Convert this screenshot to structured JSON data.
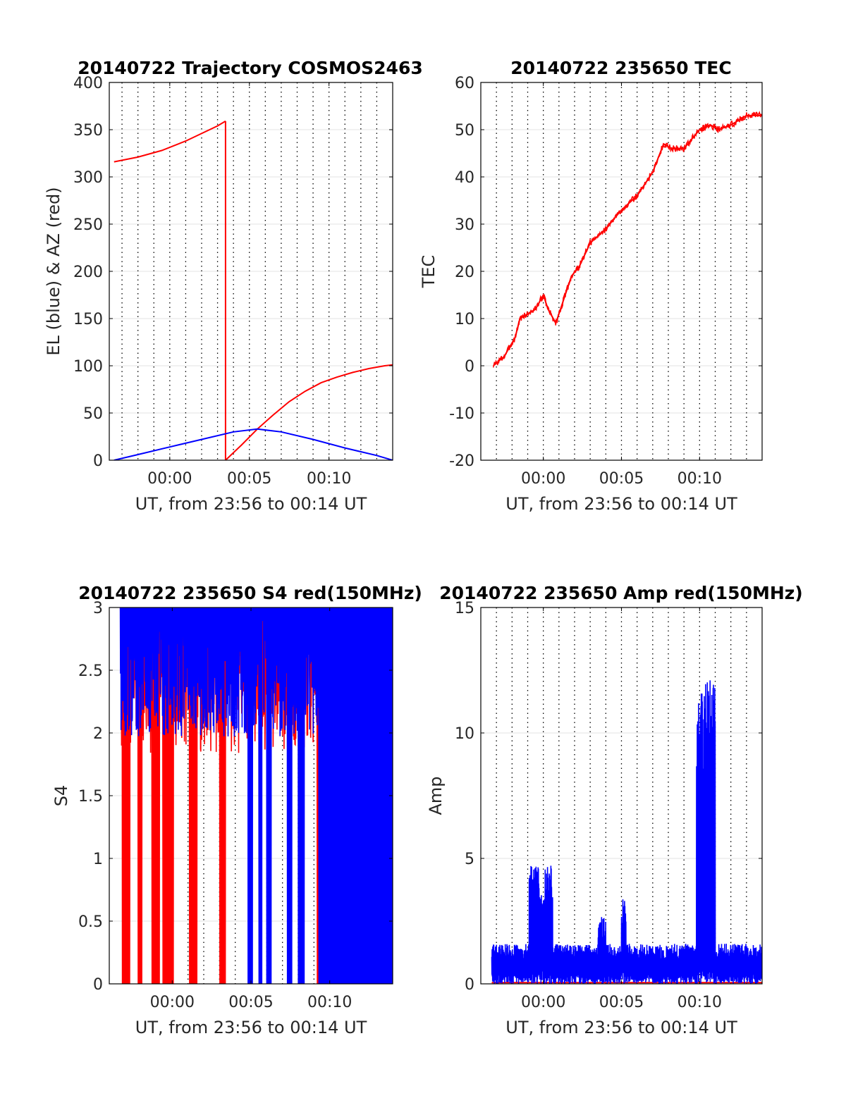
{
  "chart_data": [
    {
      "type": "line",
      "title": "20140722 Trajectory COSMOS2463",
      "xlabel": "UT, from 23:56 to 00:14 UT",
      "ylabel": "EL (blue) & AZ (red)",
      "xlim": [
        -3.8,
        14
      ],
      "ylim": [
        0,
        400
      ],
      "xticks": [
        0,
        5,
        10
      ],
      "xtick_labels": [
        "00:00",
        "00:05",
        "00:10"
      ],
      "yticks": [
        0,
        50,
        100,
        150,
        200,
        250,
        300,
        350,
        400
      ],
      "ytick_labels": [
        "0",
        "50",
        "100",
        "150",
        "200",
        "250",
        "300",
        "350",
        "400"
      ],
      "grid": true,
      "series": [
        {
          "color": "#ff0000",
          "segments": [
            {
              "x": [
                -3.5,
                -2,
                -0.5,
                1,
                2,
                3,
                3.5
              ],
              "y": [
                316,
                321,
                328,
                338,
                346,
                354,
                359
              ]
            },
            {
              "x": [
                3.5,
                3.5
              ],
              "y": [
                359,
                0
              ]
            },
            {
              "x": [
                3.5,
                4.5,
                5.5,
                6.5,
                7.5,
                8.5,
                9.5,
                10.5,
                11.5,
                12.5,
                13.5,
                14
              ],
              "y": [
                0,
                16,
                33,
                48,
                62,
                73,
                82,
                88,
                93,
                97,
                100,
                101
              ]
            }
          ]
        },
        {
          "color": "#0000ff",
          "segments": [
            {
              "x": [
                -3.5,
                -2,
                0,
                2,
                4,
                5.5,
                7,
                9,
                11,
                13,
                14
              ],
              "y": [
                0,
                6,
                14,
                22,
                30,
                33,
                30,
                22,
                13,
                5,
                0
              ]
            }
          ]
        }
      ]
    },
    {
      "type": "line",
      "title": "20140722 235650 TEC",
      "xlabel": "UT, from 23:56 to 00:14 UT",
      "ylabel": "TEC",
      "xlim": [
        -4,
        14
      ],
      "ylim": [
        -20,
        60
      ],
      "xticks": [
        0,
        5,
        10
      ],
      "xtick_labels": [
        "00:00",
        "00:05",
        "00:10"
      ],
      "yticks": [
        -20,
        -10,
        0,
        10,
        20,
        30,
        40,
        50,
        60
      ],
      "ytick_labels": [
        "-20",
        "-10",
        "0",
        "10",
        "20",
        "30",
        "40",
        "50",
        "60"
      ],
      "grid": true,
      "series": [
        {
          "color": "#ff0000",
          "segments": [
            {
              "x": [
                -3.2,
                -2.5,
                -1.8,
                -1.5,
                -0.5,
                0,
                0.3,
                0.8,
                1.3,
                1.8,
                2.3,
                3,
                4,
                5,
                6,
                7,
                7.7,
                8.2,
                9,
                10,
                10.7,
                11.2,
                12,
                13,
                14
              ],
              "y": [
                0,
                2,
                6,
                10,
                12,
                15,
                12,
                9,
                14,
                19,
                21,
                26,
                29,
                33,
                36,
                41,
                47,
                46,
                46,
                50,
                51,
                50,
                51,
                53,
                53
              ]
            }
          ]
        }
      ]
    },
    {
      "type": "line",
      "title": "20140722 235650 S4 red(150MHz)",
      "xlabel": "UT, from 23:56 to 00:14 UT",
      "ylabel": "S4",
      "xlim": [
        -4,
        14
      ],
      "ylim": [
        0,
        3
      ],
      "xticks": [
        0,
        5,
        10
      ],
      "xtick_labels": [
        "00:00",
        "00:05",
        "00:10"
      ],
      "yticks": [
        0,
        0.5,
        1,
        1.5,
        2,
        2.5,
        3
      ],
      "ytick_labels": [
        "0",
        "0.5",
        "1",
        "1.5",
        "2",
        "2.5",
        "3"
      ],
      "grid": true,
      "series": [
        {
          "color": "#ff0000",
          "noise": {
            "x_start": -3.3,
            "x_end": 14,
            "n": 900,
            "mean": 2.2,
            "spread": 0.6,
            "seed": 7,
            "dropouts": [
              [
                -3.2,
                -2.7
              ],
              [
                -2.2,
                -1.9
              ],
              [
                -1.3,
                -0.8
              ],
              [
                -0.6,
                0.1
              ],
              [
                1.1,
                1.6
              ],
              [
                3.0,
                3.4
              ],
              [
                9.2,
                14
              ]
            ]
          }
        },
        {
          "color": "#0000ff",
          "noise": {
            "x_start": -3.3,
            "x_end": 14,
            "n": 1400,
            "mean": 2.3,
            "spread": 0.55,
            "seed": 13,
            "dropouts": [
              [
                4.8,
                5.1
              ],
              [
                5.5,
                5.7
              ],
              [
                6.0,
                6.3
              ],
              [
                7.3,
                7.6
              ],
              [
                8.0,
                8.4
              ],
              [
                9.3,
                14
              ]
            ]
          }
        }
      ]
    },
    {
      "type": "line",
      "title": "20140722 235650 Amp red(150MHz)",
      "xlabel": "UT, from 23:56 to 00:14 UT",
      "ylabel": "Amp",
      "xlim": [
        -4,
        14
      ],
      "ylim": [
        0,
        15
      ],
      "xticks": [
        0,
        5,
        10
      ],
      "xtick_labels": [
        "00:00",
        "00:05",
        "00:10"
      ],
      "yticks": [
        0,
        5,
        10,
        15
      ],
      "ytick_labels": [
        "0",
        "5",
        "10",
        "15"
      ],
      "grid": true,
      "series": [
        {
          "color": "#ff0000",
          "segments": [
            {
              "x": [
                -3.3,
                14
              ],
              "y": [
                0.05,
                0.05
              ]
            }
          ]
        },
        {
          "color": "#0000ff",
          "noise": {
            "x_start": -3.3,
            "x_end": 14,
            "n": 1600,
            "mean": 0.9,
            "spread": 0.7,
            "seed": 29,
            "bursts": [
              [
                -0.9,
                0.6,
                2.6,
                4.8
              ],
              [
                3.5,
                4.0,
                1.6,
                2.7
              ],
              [
                5.0,
                5.3,
                1.7,
                3.4
              ],
              [
                9.8,
                11.0,
                7.5,
                12.1
              ]
            ]
          }
        }
      ]
    }
  ]
}
